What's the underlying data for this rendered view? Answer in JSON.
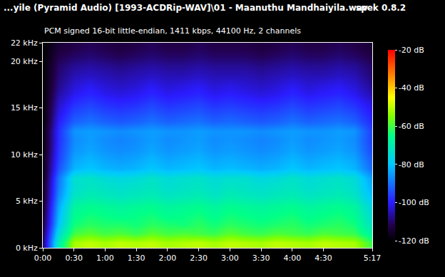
{
  "chart_data": {
    "type": "heatmap",
    "title": "...yile (Pyramid Audio) [1993-ACDRip-WAV]\\01 - Maanuthu Mandhaiyila.wav",
    "subtitle": "PCM signed 16-bit little-endian, 1411 kbps, 44100 Hz, 2 channels",
    "annotations": [
      "spek 0.8.2"
    ],
    "x": [
      0,
      15,
      30,
      45,
      60,
      75,
      90,
      105,
      120,
      135,
      150,
      165,
      180,
      195,
      210,
      225,
      240,
      255,
      270,
      285,
      300,
      315
    ],
    "y": [
      0.5,
      1.5,
      2.5,
      3.5,
      4.5,
      5.5,
      6.5,
      7.5,
      8.5,
      9.5,
      10.5,
      11.5,
      12.5,
      13.5,
      14.5,
      15.5,
      16.5,
      17.5,
      18.5,
      19.5,
      20.5,
      21.5
    ],
    "z": [
      [
        -110,
        -70,
        -52,
        -50,
        -52,
        -50,
        -51,
        -50,
        -52,
        -51,
        -50,
        -52,
        -50,
        -51,
        -52,
        -50,
        -51,
        -52,
        -50,
        -51,
        -52,
        -60
      ],
      [
        -112,
        -75,
        -60,
        -58,
        -60,
        -59,
        -61,
        -58,
        -60,
        -59,
        -60,
        -61,
        -58,
        -60,
        -61,
        -59,
        -60,
        -61,
        -59,
        -60,
        -61,
        -68
      ],
      [
        -114,
        -80,
        -64,
        -62,
        -63,
        -63,
        -64,
        -62,
        -63,
        -64,
        -62,
        -64,
        -62,
        -63,
        -64,
        -63,
        -62,
        -64,
        -63,
        -62,
        -64,
        -72
      ],
      [
        -115,
        -82,
        -66,
        -64,
        -65,
        -66,
        -65,
        -64,
        -66,
        -65,
        -64,
        -66,
        -64,
        -65,
        -66,
        -65,
        -64,
        -66,
        -65,
        -64,
        -66,
        -74
      ],
      [
        -116,
        -84,
        -68,
        -66,
        -67,
        -68,
        -67,
        -66,
        -68,
        -67,
        -66,
        -68,
        -66,
        -67,
        -68,
        -67,
        -66,
        -68,
        -67,
        -66,
        -68,
        -76
      ],
      [
        -117,
        -87,
        -72,
        -70,
        -71,
        -72,
        -71,
        -70,
        -72,
        -71,
        -70,
        -72,
        -70,
        -71,
        -72,
        -71,
        -70,
        -72,
        -71,
        -70,
        -72,
        -80
      ],
      [
        -117,
        -89,
        -74,
        -72,
        -73,
        -74,
        -73,
        -72,
        -74,
        -73,
        -72,
        -74,
        -72,
        -73,
        -74,
        -73,
        -72,
        -74,
        -73,
        -72,
        -74,
        -82
      ],
      [
        -118,
        -90,
        -74,
        -73,
        -75,
        -76,
        -75,
        -73,
        -75,
        -74,
        -73,
        -75,
        -74,
        -74,
        -76,
        -75,
        -73,
        -75,
        -74,
        -73,
        -75,
        -84
      ],
      [
        -118,
        -94,
        -82,
        -80,
        -82,
        -83,
        -82,
        -80,
        -82,
        -81,
        -80,
        -82,
        -81,
        -82,
        -83,
        -82,
        -80,
        -82,
        -81,
        -80,
        -82,
        -90
      ],
      [
        -118,
        -96,
        -84,
        -82,
        -84,
        -85,
        -84,
        -82,
        -84,
        -83,
        -82,
        -84,
        -83,
        -84,
        -85,
        -84,
        -82,
        -84,
        -83,
        -82,
        -84,
        -92
      ],
      [
        -119,
        -97,
        -86,
        -84,
        -86,
        -87,
        -86,
        -84,
        -86,
        -85,
        -84,
        -86,
        -85,
        -86,
        -87,
        -86,
        -84,
        -86,
        -85,
        -84,
        -86,
        -94
      ],
      [
        -119,
        -98,
        -87,
        -85,
        -87,
        -88,
        -87,
        -85,
        -87,
        -86,
        -85,
        -87,
        -86,
        -87,
        -88,
        -87,
        -85,
        -87,
        -86,
        -85,
        -87,
        -95
      ],
      [
        -119,
        -98,
        -86,
        -85,
        -86,
        -87,
        -86,
        -85,
        -86,
        -86,
        -85,
        -86,
        -86,
        -86,
        -87,
        -86,
        -85,
        -86,
        -86,
        -85,
        -86,
        -95
      ],
      [
        -120,
        -100,
        -92,
        -90,
        -92,
        -93,
        -92,
        -90,
        -92,
        -91,
        -90,
        -92,
        -91,
        -92,
        -93,
        -92,
        -90,
        -92,
        -91,
        -90,
        -92,
        -98
      ],
      [
        -120,
        -102,
        -95,
        -93,
        -95,
        -96,
        -95,
        -93,
        -95,
        -94,
        -93,
        -95,
        -94,
        -95,
        -96,
        -95,
        -93,
        -95,
        -94,
        -93,
        -95,
        -100
      ],
      [
        -120,
        -104,
        -98,
        -96,
        -98,
        -99,
        -98,
        -96,
        -98,
        -97,
        -96,
        -98,
        -97,
        -98,
        -99,
        -98,
        -96,
        -98,
        -97,
        -96,
        -98,
        -102
      ],
      [
        -120,
        -106,
        -101,
        -99,
        -101,
        -102,
        -101,
        -99,
        -101,
        -100,
        -99,
        -101,
        -100,
        -101,
        -102,
        -101,
        -99,
        -101,
        -100,
        -99,
        -101,
        -105
      ],
      [
        -120,
        -108,
        -103,
        -101,
        -103,
        -104,
        -103,
        -101,
        -103,
        -102,
        -101,
        -103,
        -102,
        -103,
        -104,
        -103,
        -101,
        -103,
        -102,
        -101,
        -103,
        -107
      ],
      [
        -120,
        -109,
        -105,
        -104,
        -105,
        -106,
        -105,
        -104,
        -105,
        -105,
        -104,
        -105,
        -105,
        -105,
        -106,
        -105,
        -104,
        -105,
        -105,
        -104,
        -105,
        -109
      ],
      [
        -120,
        -110,
        -107,
        -106,
        -107,
        -108,
        -107,
        -106,
        -107,
        -107,
        -106,
        -107,
        -107,
        -107,
        -108,
        -107,
        -106,
        -107,
        -107,
        -106,
        -107,
        -110
      ],
      [
        -120,
        -112,
        -110,
        -109,
        -110,
        -111,
        -110,
        -109,
        -110,
        -110,
        -109,
        -110,
        -110,
        -110,
        -111,
        -110,
        -109,
        -110,
        -110,
        -109,
        -110,
        -112
      ],
      [
        -120,
        -114,
        -112,
        -111,
        -112,
        -113,
        -112,
        -111,
        -112,
        -112,
        -111,
        -112,
        -112,
        -112,
        -113,
        -112,
        -111,
        -112,
        -112,
        -111,
        -112,
        -114
      ]
    ],
    "xlim": [
      0,
      317
    ],
    "xticks": [
      {
        "value": 0,
        "label": "0:00"
      },
      {
        "value": 30,
        "label": "0:30"
      },
      {
        "value": 60,
        "label": "1:00"
      },
      {
        "value": 90,
        "label": "1:30"
      },
      {
        "value": 120,
        "label": "2:00"
      },
      {
        "value": 150,
        "label": "2:30"
      },
      {
        "value": 180,
        "label": "3:00"
      },
      {
        "value": 210,
        "label": "3:30"
      },
      {
        "value": 240,
        "label": "4:00"
      },
      {
        "value": 270,
        "label": "4:30"
      },
      {
        "value": 317,
        "label": "5:17"
      }
    ],
    "ylim": [
      0,
      22
    ],
    "yticks": [
      {
        "value": 0,
        "label": "0 kHz"
      },
      {
        "value": 5,
        "label": "5 kHz"
      },
      {
        "value": 10,
        "label": "10 kHz"
      },
      {
        "value": 15,
        "label": "15 kHz"
      },
      {
        "value": 20,
        "label": "20 kHz"
      },
      {
        "value": 22,
        "label": "22 kHz"
      }
    ],
    "colorbar": {
      "range": [
        -120,
        -20
      ],
      "ticks": [
        {
          "value": -20,
          "label": "-20 dB"
        },
        {
          "value": -40,
          "label": "-40 dB"
        },
        {
          "value": -60,
          "label": "-60 dB"
        },
        {
          "value": -80,
          "label": "-80 dB"
        },
        {
          "value": -100,
          "label": "-100 dB"
        },
        {
          "value": -120,
          "label": "-120 dB"
        }
      ]
    }
  }
}
